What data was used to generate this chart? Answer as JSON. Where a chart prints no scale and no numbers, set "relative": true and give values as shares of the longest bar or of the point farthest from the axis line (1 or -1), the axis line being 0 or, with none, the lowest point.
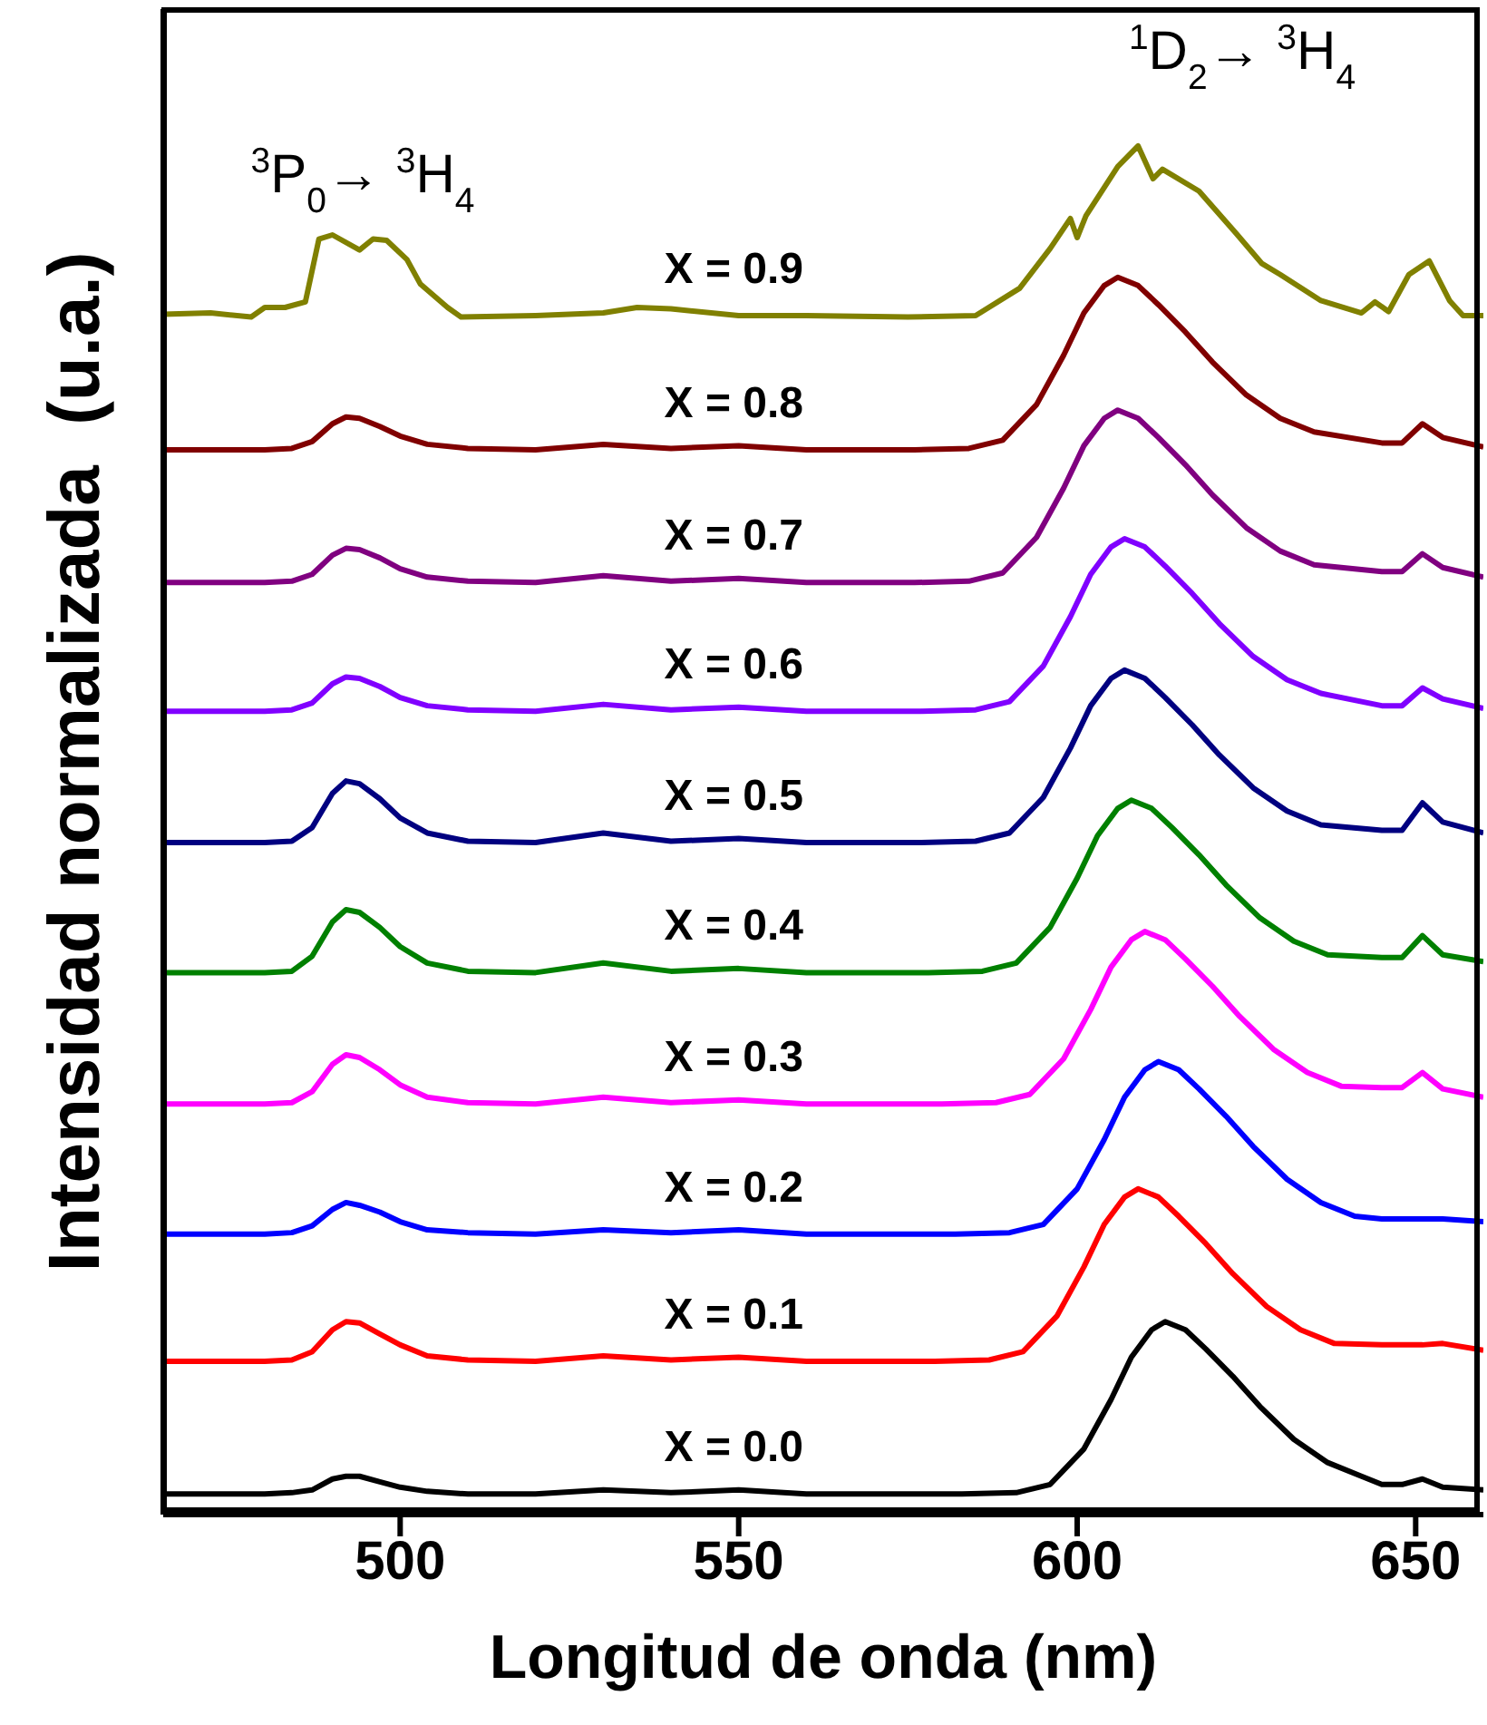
{
  "chart_data": {
    "type": "line",
    "relative": true,
    "xlabel": "Longitud de onda (nm)",
    "ylabel": "Intensidad normalizada  (u.a.)",
    "xlim": [
      465,
      660
    ],
    "xticks": [
      500,
      550,
      600,
      650
    ],
    "annotations": [
      "$^{3}$P$_{0}$→ $^{3}$H$_{4}$",
      "$^{1}$D$_{2}$→ $^{3}$H$_{4}$"
    ],
    "series": [
      {
        "name": "X = 0.0",
        "color": "#000000",
        "x": [
          465,
          480,
          484,
          487,
          490,
          492,
          494,
          497,
          500,
          504,
          510,
          520,
          530,
          540,
          550,
          560,
          575,
          583,
          591,
          596,
          601,
          605,
          608,
          611,
          613,
          616,
          619,
          623,
          627,
          632,
          637,
          642,
          645,
          648,
          651,
          654,
          660
        ],
        "values": [
          0.015,
          0.015,
          0.016,
          0.018,
          0.026,
          0.028,
          0.028,
          0.024,
          0.02,
          0.017,
          0.015,
          0.015,
          0.018,
          0.016,
          0.018,
          0.015,
          0.015,
          0.015,
          0.016,
          0.022,
          0.048,
          0.084,
          0.115,
          0.135,
          0.141,
          0.135,
          0.121,
          0.101,
          0.079,
          0.055,
          0.038,
          0.028,
          0.022,
          0.022,
          0.026,
          0.02,
          0.018
        ]
      },
      {
        "name": "X = 0.1",
        "color": "#ff0000",
        "x": [
          465,
          480,
          484,
          487,
          490,
          492,
          494,
          497,
          500,
          504,
          510,
          520,
          530,
          540,
          550,
          560,
          575,
          579,
          587,
          592,
          597,
          601,
          604,
          607,
          609,
          612,
          615,
          619,
          623,
          628,
          633,
          638,
          645,
          648,
          651,
          654,
          660
        ],
        "values": [
          0.112,
          0.112,
          0.113,
          0.119,
          0.135,
          0.141,
          0.14,
          0.132,
          0.124,
          0.116,
          0.113,
          0.112,
          0.116,
          0.113,
          0.115,
          0.112,
          0.112,
          0.112,
          0.113,
          0.119,
          0.145,
          0.181,
          0.212,
          0.232,
          0.238,
          0.232,
          0.218,
          0.198,
          0.176,
          0.152,
          0.135,
          0.125,
          0.124,
          0.124,
          0.124,
          0.125,
          0.12
        ]
      },
      {
        "name": "X = 0.2",
        "color": "#0000ff",
        "x": [
          465,
          480,
          484,
          487,
          490,
          492,
          494,
          497,
          500,
          504,
          510,
          520,
          530,
          540,
          550,
          560,
          575,
          582,
          590,
          595,
          600,
          604,
          607,
          610,
          612,
          615,
          618,
          622,
          626,
          631,
          636,
          641,
          645,
          648,
          651,
          654,
          660
        ],
        "values": [
          0.205,
          0.205,
          0.206,
          0.211,
          0.223,
          0.228,
          0.226,
          0.221,
          0.214,
          0.208,
          0.206,
          0.205,
          0.208,
          0.206,
          0.208,
          0.205,
          0.205,
          0.205,
          0.206,
          0.212,
          0.238,
          0.274,
          0.305,
          0.325,
          0.331,
          0.325,
          0.311,
          0.291,
          0.269,
          0.245,
          0.228,
          0.218,
          0.216,
          0.216,
          0.216,
          0.216,
          0.214
        ]
      },
      {
        "name": "X = 0.3",
        "color": "#ff00ff",
        "x": [
          465,
          480,
          484,
          487,
          490,
          492,
          494,
          497,
          500,
          504,
          510,
          520,
          530,
          540,
          550,
          560,
          575,
          580,
          588,
          593,
          598,
          602,
          605,
          608,
          610,
          613,
          616,
          620,
          624,
          629,
          634,
          639,
          645,
          648,
          651,
          654,
          660
        ],
        "values": [
          0.3,
          0.3,
          0.301,
          0.309,
          0.329,
          0.336,
          0.334,
          0.325,
          0.314,
          0.305,
          0.301,
          0.3,
          0.305,
          0.301,
          0.303,
          0.3,
          0.3,
          0.3,
          0.301,
          0.307,
          0.333,
          0.369,
          0.4,
          0.42,
          0.426,
          0.42,
          0.406,
          0.386,
          0.364,
          0.34,
          0.323,
          0.313,
          0.312,
          0.312,
          0.323,
          0.311,
          0.305
        ]
      },
      {
        "name": "X = 0.4",
        "color": "#008000",
        "x": [
          465,
          480,
          484,
          487,
          490,
          492,
          494,
          497,
          500,
          504,
          510,
          520,
          530,
          540,
          550,
          560,
          575,
          578,
          586,
          591,
          596,
          600,
          603,
          606,
          608,
          611,
          614,
          618,
          622,
          627,
          632,
          637,
          645,
          648,
          651,
          654,
          660
        ],
        "values": [
          0.396,
          0.396,
          0.397,
          0.408,
          0.433,
          0.442,
          0.44,
          0.429,
          0.415,
          0.403,
          0.397,
          0.396,
          0.403,
          0.397,
          0.399,
          0.396,
          0.396,
          0.396,
          0.397,
          0.403,
          0.429,
          0.465,
          0.496,
          0.516,
          0.522,
          0.516,
          0.502,
          0.482,
          0.46,
          0.436,
          0.419,
          0.409,
          0.407,
          0.407,
          0.423,
          0.409,
          0.404
        ]
      },
      {
        "name": "X = 0.5",
        "color": "#000080",
        "x": [
          465,
          480,
          484,
          487,
          490,
          492,
          494,
          497,
          500,
          504,
          510,
          520,
          530,
          540,
          550,
          560,
          575,
          577,
          585,
          590,
          595,
          599,
          602,
          605,
          607,
          610,
          613,
          617,
          621,
          626,
          631,
          636,
          645,
          648,
          651,
          654,
          660
        ],
        "values": [
          0.491,
          0.491,
          0.492,
          0.502,
          0.527,
          0.536,
          0.534,
          0.523,
          0.509,
          0.498,
          0.492,
          0.491,
          0.498,
          0.492,
          0.494,
          0.491,
          0.491,
          0.491,
          0.492,
          0.498,
          0.524,
          0.56,
          0.591,
          0.611,
          0.617,
          0.611,
          0.597,
          0.577,
          0.555,
          0.531,
          0.514,
          0.504,
          0.5,
          0.5,
          0.52,
          0.506,
          0.498
        ]
      },
      {
        "name": "X = 0.6",
        "color": "#8000ff",
        "x": [
          465,
          480,
          484,
          487,
          490,
          492,
          494,
          497,
          500,
          504,
          510,
          520,
          530,
          540,
          550,
          560,
          575,
          577,
          585,
          590,
          595,
          599,
          602,
          605,
          607,
          610,
          613,
          617,
          621,
          626,
          631,
          636,
          645,
          648,
          651,
          654,
          660
        ],
        "values": [
          0.587,
          0.587,
          0.588,
          0.593,
          0.607,
          0.612,
          0.611,
          0.605,
          0.597,
          0.591,
          0.588,
          0.587,
          0.592,
          0.588,
          0.59,
          0.587,
          0.587,
          0.587,
          0.588,
          0.594,
          0.62,
          0.656,
          0.687,
          0.707,
          0.713,
          0.707,
          0.693,
          0.673,
          0.651,
          0.627,
          0.61,
          0.6,
          0.591,
          0.591,
          0.604,
          0.596,
          0.589
        ]
      },
      {
        "name": "X = 0.7",
        "color": "#800080",
        "x": [
          465,
          480,
          484,
          487,
          490,
          492,
          494,
          497,
          500,
          504,
          510,
          520,
          530,
          540,
          550,
          560,
          575,
          576,
          584,
          589,
          594,
          598,
          601,
          604,
          606,
          609,
          612,
          616,
          620,
          625,
          630,
          635,
          645,
          648,
          651,
          654,
          660
        ],
        "values": [
          0.681,
          0.681,
          0.682,
          0.687,
          0.701,
          0.706,
          0.705,
          0.699,
          0.691,
          0.685,
          0.682,
          0.681,
          0.686,
          0.682,
          0.684,
          0.681,
          0.681,
          0.681,
          0.682,
          0.688,
          0.714,
          0.75,
          0.781,
          0.801,
          0.807,
          0.801,
          0.787,
          0.767,
          0.745,
          0.721,
          0.704,
          0.694,
          0.689,
          0.689,
          0.702,
          0.692,
          0.685
        ]
      },
      {
        "name": "X = 0.8",
        "color": "#800000",
        "x": [
          465,
          480,
          484,
          487,
          490,
          492,
          494,
          497,
          500,
          504,
          510,
          520,
          530,
          540,
          550,
          560,
          575,
          576,
          584,
          589,
          594,
          598,
          601,
          604,
          606,
          609,
          612,
          616,
          620,
          625,
          630,
          635,
          645,
          648,
          651,
          654,
          660
        ],
        "values": [
          0.778,
          0.778,
          0.779,
          0.784,
          0.797,
          0.802,
          0.801,
          0.795,
          0.788,
          0.782,
          0.779,
          0.778,
          0.782,
          0.779,
          0.781,
          0.778,
          0.778,
          0.778,
          0.779,
          0.785,
          0.811,
          0.847,
          0.878,
          0.898,
          0.904,
          0.898,
          0.884,
          0.864,
          0.842,
          0.818,
          0.801,
          0.791,
          0.783,
          0.783,
          0.797,
          0.787,
          0.78
        ]
      },
      {
        "name": "X = 0.9",
        "color": "#808000",
        "x": [
          465,
          472,
          478,
          480,
          483,
          486,
          488,
          490,
          494,
          496,
          498,
          501,
          503,
          507,
          509,
          520,
          530,
          535,
          540,
          550,
          560,
          575,
          585,
          591.5,
          596,
          599,
          600,
          601.3,
          606,
          609,
          611.2,
          612.6,
          618,
          623.5,
          627.3,
          630,
          636,
          642,
          644,
          646,
          649,
          652,
          655,
          657,
          660
        ],
        "values": [
          0.877,
          0.878,
          0.875,
          0.882,
          0.882,
          0.886,
          0.932,
          0.935,
          0.924,
          0.932,
          0.931,
          0.917,
          0.899,
          0.882,
          0.875,
          0.876,
          0.878,
          0.882,
          0.881,
          0.876,
          0.876,
          0.875,
          0.876,
          0.896,
          0.925,
          0.947,
          0.933,
          0.949,
          0.985,
          1.0,
          0.976,
          0.983,
          0.967,
          0.936,
          0.914,
          0.906,
          0.887,
          0.878,
          0.886,
          0.879,
          0.906,
          0.916,
          0.887,
          0.876,
          0.876
        ]
      }
    ]
  }
}
